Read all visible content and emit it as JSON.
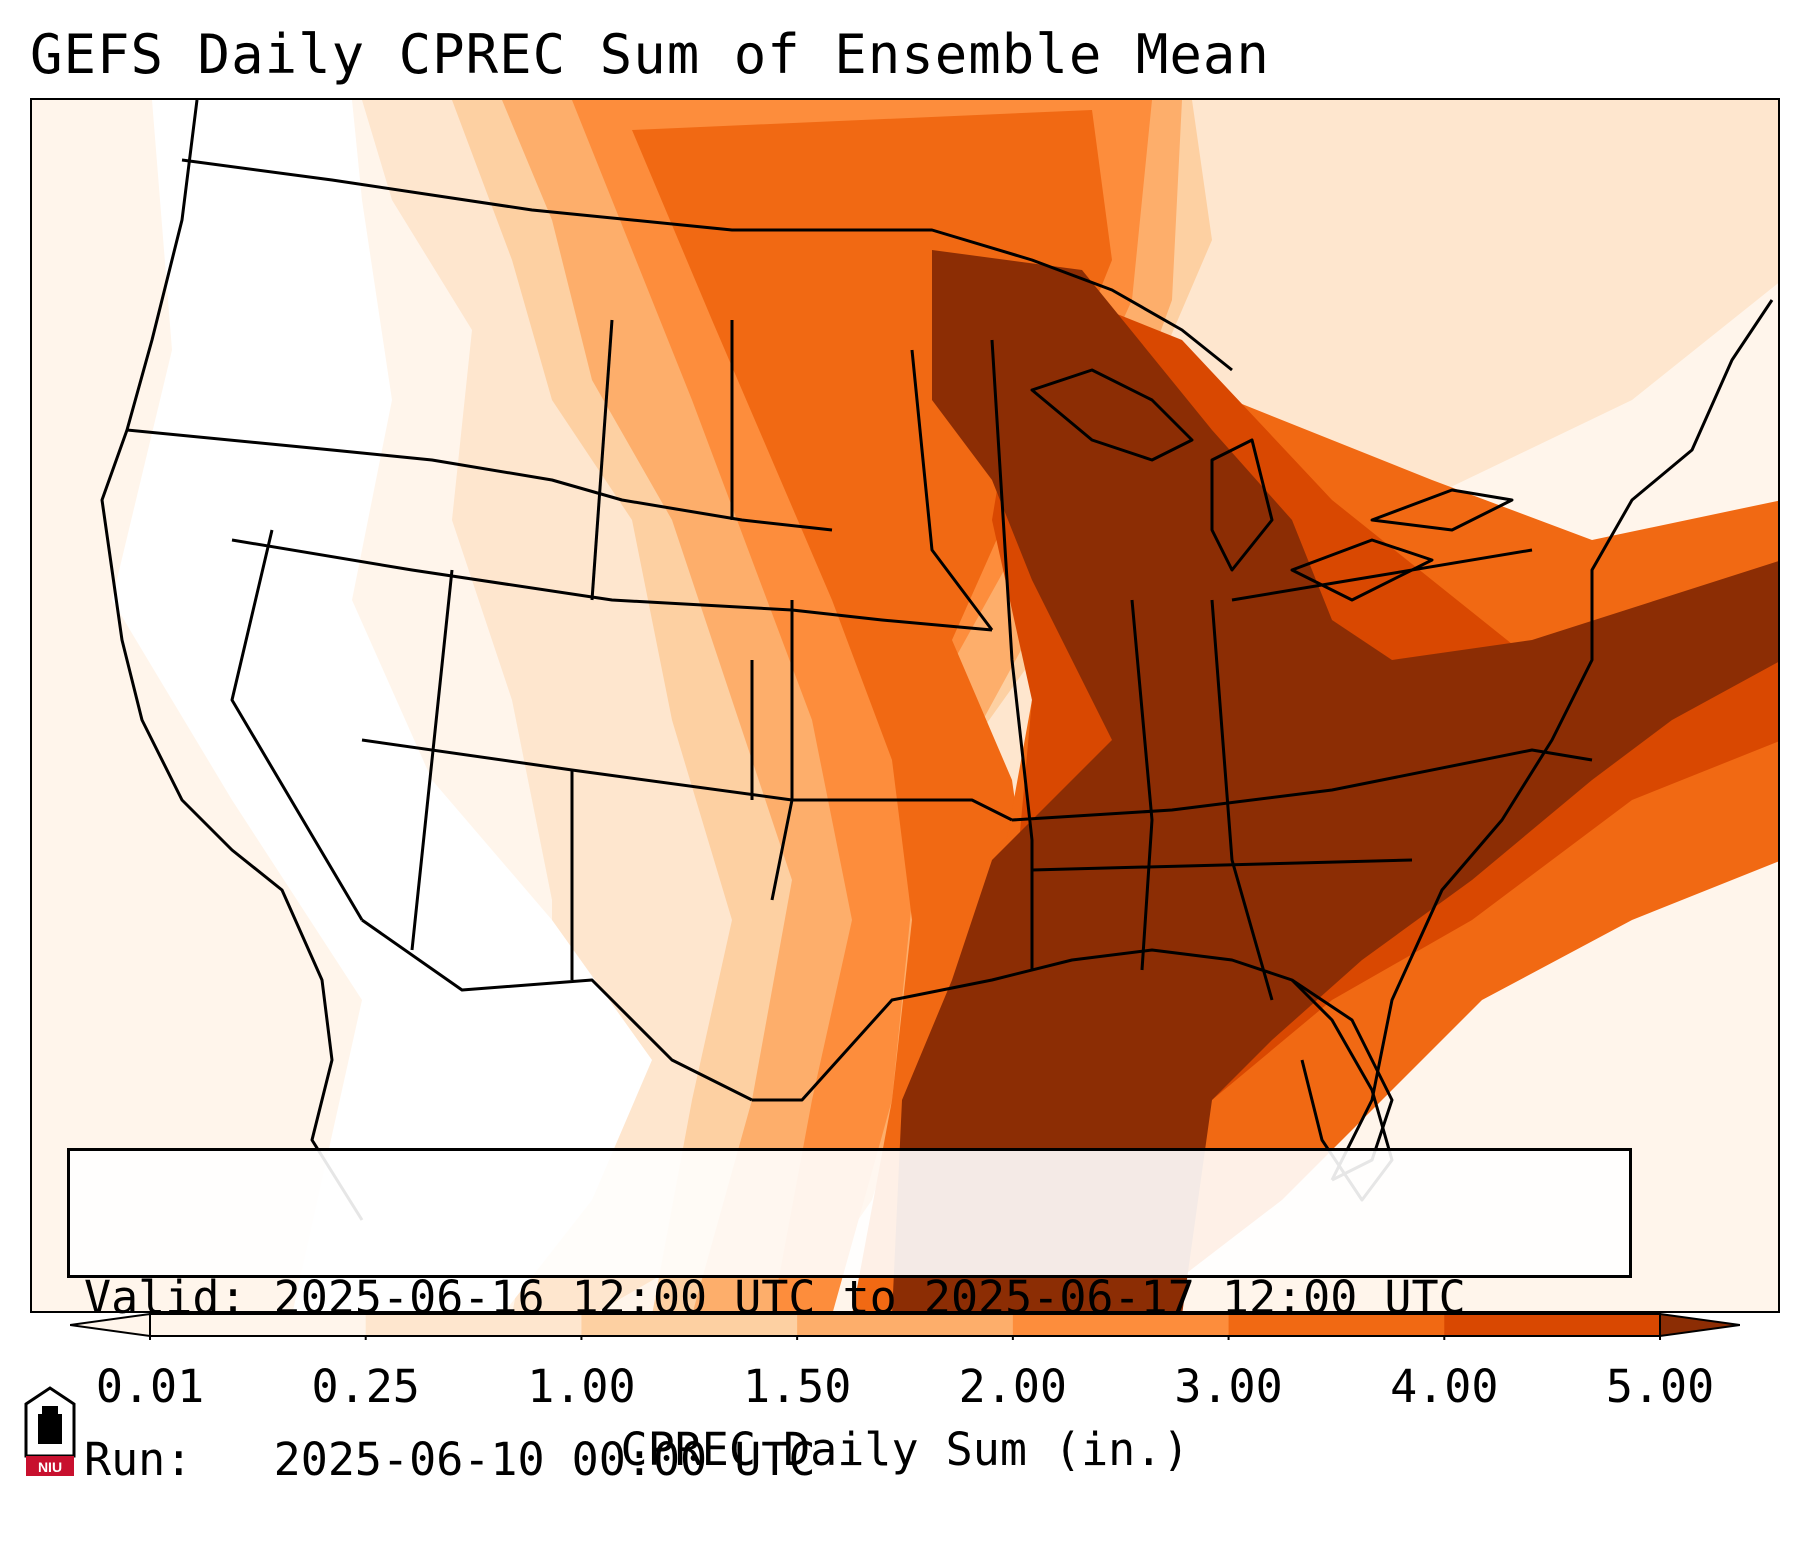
{
  "title": "GEFS Daily CPREC Sum of Ensemble Mean",
  "info": {
    "valid_line": "Valid: 2025-06-16 12:00 UTC to 2025-06-17 12:00 UTC",
    "run_line": "Run:   2025-06-10 00:00 UTC"
  },
  "colorbar": {
    "label": "CPREC Daily Sum (in.)",
    "ticks": [
      "0.01",
      "0.25",
      "1.00",
      "1.50",
      "2.00",
      "3.00",
      "4.00",
      "5.00"
    ],
    "colors": [
      "#fff5eb",
      "#fee6ce",
      "#fdd0a2",
      "#fdae6b",
      "#fd8d3c",
      "#f16913",
      "#d94801",
      "#8c2d04"
    ],
    "extend": "both"
  },
  "map": {
    "region": "Continental United States",
    "background_color": "#fff5eb",
    "boundary_color": "#000000"
  },
  "logo": {
    "text": "NIU",
    "icon": "niu-seal-icon"
  }
}
